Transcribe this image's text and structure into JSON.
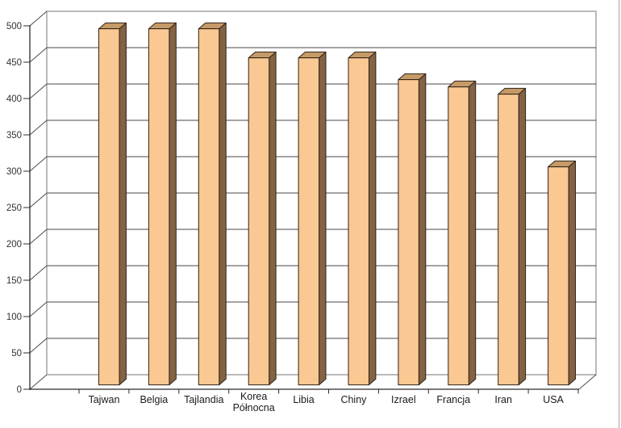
{
  "chart_data": {
    "type": "bar",
    "style": "3d-column",
    "title": "",
    "xlabel": "",
    "ylabel": "",
    "categories": [
      "Tajwan",
      "Belgia",
      "Tajlandia",
      "Korea Północna",
      "Libia",
      "Chiny",
      "Izrael",
      "Francja",
      "Iran",
      "USA"
    ],
    "values": [
      490,
      490,
      490,
      450,
      450,
      450,
      420,
      410,
      400,
      300
    ],
    "ylim": [
      0,
      500
    ],
    "ytick_step": 50,
    "ytick_labels": [
      "0",
      "50",
      "100",
      "150",
      "200",
      "250",
      "300",
      "350",
      "400",
      "450",
      "500"
    ],
    "grid": true,
    "legend": "none",
    "colors": {
      "background": "#FFFFFF",
      "bar_front": "#FAC893",
      "bar_top": "#C69A67",
      "bar_side": "#836344",
      "bar_outline": "#2E2116",
      "gridline": "#4A4A4A",
      "wall_border": "#B3B3B3",
      "axis": "#2B2B2B",
      "tick_label": "#333333",
      "category_label": "#1A1A1A",
      "window_border": "#C8C8C8"
    }
  }
}
